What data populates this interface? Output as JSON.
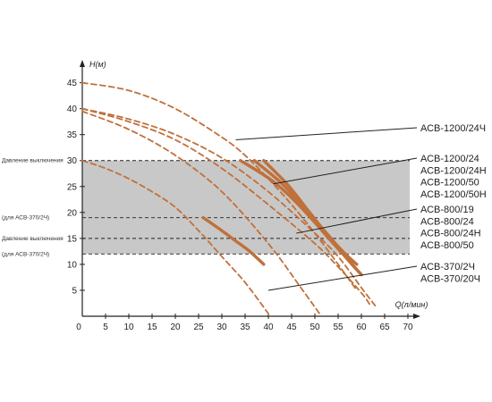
{
  "chart_data": {
    "type": "line",
    "title": "",
    "xlabel": "Q(л/мин)",
    "ylabel": "H(м)",
    "xlim": [
      0,
      70
    ],
    "ylim": [
      0,
      47
    ],
    "x_ticks": [
      0,
      5,
      10,
      15,
      20,
      25,
      30,
      35,
      40,
      45,
      50,
      55,
      60,
      65,
      70
    ],
    "y_ticks": [
      5,
      10,
      15,
      20,
      25,
      30,
      35,
      40,
      45
    ],
    "colors": {
      "curve": "#c0703a",
      "band": "#c8c8c8",
      "axis": "#222222"
    },
    "band": {
      "y_from": 12,
      "y_to": 30
    },
    "reference_lines": [
      {
        "y": 30,
        "label": "Давление выключения"
      },
      {
        "y": 19,
        "label": "(для АСВ-370/2Ч)"
      },
      {
        "y": 15,
        "label": "Давление выключения"
      },
      {
        "y": 12,
        "label": "(для АСВ-370/2Ч)"
      }
    ],
    "series": [
      {
        "x": [
          0,
          10,
          20,
          30,
          35,
          40,
          45,
          50,
          55,
          59
        ],
        "y": [
          45,
          43.5,
          40,
          34.5,
          31,
          26.5,
          21.5,
          16,
          10,
          5
        ]
      },
      {
        "x": [
          0,
          10,
          20,
          30,
          40,
          50,
          55,
          60,
          62
        ],
        "y": [
          40,
          37.5,
          34,
          28.5,
          21.5,
          14,
          9.5,
          4.5,
          2
        ]
      },
      {
        "x": [
          0,
          10,
          20,
          30,
          40,
          50,
          55,
          60,
          63
        ],
        "y": [
          40,
          38,
          35,
          30.5,
          24,
          16,
          11.5,
          5.5,
          2
        ]
      },
      {
        "x": [
          0,
          10,
          20,
          30,
          40,
          47,
          51
        ],
        "y": [
          39.5,
          36,
          31,
          24,
          14,
          5.5,
          0.5
        ]
      },
      {
        "x": [
          0,
          5,
          10,
          15,
          20,
          25,
          30,
          35,
          40
        ],
        "y": [
          30,
          28.5,
          26.5,
          24,
          21,
          16.5,
          11.5,
          6.5,
          0.5
        ]
      }
    ],
    "solid_segments": [
      {
        "x": [
          34,
          41,
          47,
          53,
          58,
          60
        ],
        "y": [
          30,
          26,
          21,
          15,
          10,
          8
        ]
      },
      {
        "x": [
          37,
          43,
          48,
          53,
          57,
          60
        ],
        "y": [
          30,
          25.5,
          20.5,
          15.5,
          11,
          8
        ]
      },
      {
        "x": [
          39,
          44,
          48,
          52,
          56,
          59
        ],
        "y": [
          30,
          25.5,
          21,
          16.5,
          12.5,
          10
        ]
      },
      {
        "x": [
          26,
          30,
          33,
          36,
          39
        ],
        "y": [
          19,
          16.5,
          14.5,
          12.5,
          10
        ]
      }
    ],
    "callouts": [
      {
        "from": [
          33,
          34
        ],
        "to_label": 0
      },
      {
        "from": [
          41,
          25.5
        ],
        "to_label": 1
      },
      {
        "from": [
          46,
          16
        ],
        "to_label": 2
      },
      {
        "from": [
          40,
          5
        ],
        "to_label": 3
      }
    ],
    "label_groups": [
      {
        "lines": [
          "АСВ-1200/24Ч"
        ]
      },
      {
        "lines": [
          "АСВ-1200/24",
          "АСВ-1200/24Н",
          "АСВ-1200/50",
          "АСВ-1200/50Н"
        ]
      },
      {
        "lines": [
          "АСВ-800/19",
          "АСВ-800/24",
          "АСВ-800/24Н",
          "АСВ-800/50"
        ]
      },
      {
        "lines": [
          "АСВ-370/2Ч",
          "АСВ-370/20Ч"
        ]
      }
    ]
  }
}
